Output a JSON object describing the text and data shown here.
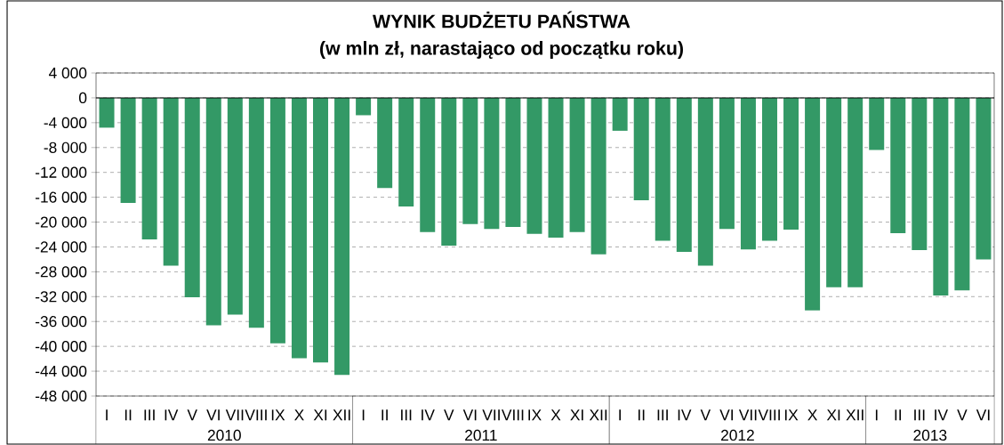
{
  "chart_data": {
    "type": "bar",
    "title": "WYNIK BUDŻETU PAŃSTWA",
    "subtitle": "(w mln zł, narastająco od początku roku)",
    "categories": [
      "I",
      "II",
      "III",
      "IV",
      "V",
      "VI",
      "VII",
      "VIII",
      "IX",
      "X",
      "XI",
      "XII",
      "I",
      "II",
      "III",
      "IV",
      "V",
      "VI",
      "VII",
      "VIII",
      "IX",
      "X",
      "XI",
      "XII",
      "I",
      "II",
      "III",
      "IV",
      "V",
      "VI",
      "VII",
      "VIII",
      "IX",
      "X",
      "XI",
      "XII",
      "I",
      "II",
      "III",
      "IV",
      "V",
      "VI"
    ],
    "values": [
      -4800,
      -16900,
      -22800,
      -27000,
      -32100,
      -36600,
      -34900,
      -37000,
      -39500,
      -41900,
      -42600,
      -44600,
      -2800,
      -14500,
      -17500,
      -21600,
      -23800,
      -20300,
      -21100,
      -20800,
      -21900,
      -22500,
      -21600,
      -25200,
      -5300,
      -16500,
      -23000,
      -24800,
      -27000,
      -21100,
      -24400,
      -23000,
      -21200,
      -34200,
      -30500,
      -30500,
      -8400,
      -21800,
      -24500,
      -31800,
      -31000,
      -26000
    ],
    "color": "#339966",
    "ylim": [
      -48000,
      4000
    ],
    "yticks": [
      {
        "value": 4000,
        "label": "4 000"
      },
      0,
      {
        "value": -4000,
        "label": "-4 000"
      },
      {
        "value": -8000,
        "label": "-8 000"
      },
      {
        "value": -12000,
        "label": "-12 000"
      },
      {
        "value": -16000,
        "label": "-16 000"
      },
      {
        "value": -20000,
        "label": "-20 000"
      },
      {
        "value": -24000,
        "label": "-24 000"
      },
      {
        "value": -28000,
        "label": "-28 000"
      },
      {
        "value": -32000,
        "label": "-32 000"
      },
      {
        "value": -36000,
        "label": "-36 000"
      },
      {
        "value": -40000,
        "label": "-40 000"
      },
      {
        "value": -44000,
        "label": "-44 000"
      },
      {
        "value": -48000,
        "label": "-48 000"
      }
    ],
    "grid": "y",
    "annotations": [
      "2010",
      "2011",
      "2012",
      "2013"
    ]
  }
}
